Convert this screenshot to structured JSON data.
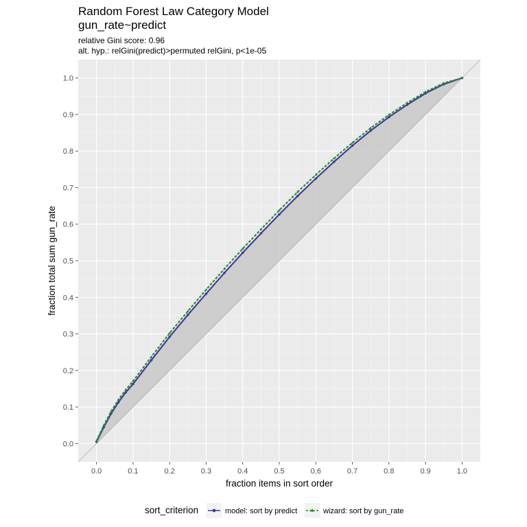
{
  "chart_data": {
    "type": "line",
    "title": "Random Forest Law Category Model",
    "title_line2": "gun_rate~predict",
    "subtitle_line1": "relative Gini score: 0.96",
    "subtitle_line2": "alt. hyp.: relGini(predict)>permuted relGini, p<1e-05",
    "xlabel": "fraction items in sort order",
    "ylabel": "fraction total sum gun_rate",
    "xlim": [
      -0.05,
      1.05
    ],
    "ylim": [
      -0.05,
      1.05
    ],
    "xticks": [
      0.0,
      0.1,
      0.2,
      0.3,
      0.4,
      0.5,
      0.6,
      0.7,
      0.8,
      0.9,
      1.0
    ],
    "yticks": [
      0.0,
      0.1,
      0.2,
      0.3,
      0.4,
      0.5,
      0.6,
      0.7,
      0.8,
      0.9,
      1.0
    ],
    "xtick_labels": [
      "0.0",
      "0.1",
      "0.2",
      "0.3",
      "0.4",
      "0.5",
      "0.6",
      "0.7",
      "0.8",
      "0.9",
      "1.0"
    ],
    "ytick_labels": [
      "0.0",
      "0.1",
      "0.2",
      "0.3",
      "0.4",
      "0.5",
      "0.6",
      "0.7",
      "0.8",
      "0.9",
      "1.0"
    ],
    "grid": true,
    "legend_position": "bottom",
    "legend_title": "sort_criterion",
    "diagonal_reference": true,
    "shaded_region": "between diagonal and model curve",
    "series": [
      {
        "name": "model: sort by predict",
        "color": "#3c3c9e",
        "marker": "circle",
        "linestyle": "solid",
        "x": [
          0.0,
          0.02,
          0.04,
          0.06,
          0.08,
          0.1,
          0.15,
          0.2,
          0.25,
          0.3,
          0.35,
          0.4,
          0.45,
          0.5,
          0.55,
          0.6,
          0.65,
          0.7,
          0.75,
          0.8,
          0.85,
          0.9,
          0.95,
          1.0
        ],
        "y": [
          0.005,
          0.045,
          0.082,
          0.113,
          0.14,
          0.163,
          0.228,
          0.292,
          0.352,
          0.41,
          0.467,
          0.522,
          0.575,
          0.627,
          0.677,
          0.725,
          0.771,
          0.815,
          0.856,
          0.893,
          0.927,
          0.958,
          0.983,
          1.0
        ]
      },
      {
        "name": "wizard: sort by gun_rate",
        "color": "#2e8b2e",
        "marker": "triangle",
        "linestyle": "dashed",
        "x": [
          0.0,
          0.02,
          0.04,
          0.06,
          0.08,
          0.1,
          0.15,
          0.2,
          0.25,
          0.3,
          0.35,
          0.4,
          0.45,
          0.5,
          0.55,
          0.6,
          0.65,
          0.7,
          0.75,
          0.8,
          0.85,
          0.9,
          0.95,
          1.0
        ],
        "y": [
          0.007,
          0.05,
          0.088,
          0.12,
          0.147,
          0.171,
          0.237,
          0.302,
          0.362,
          0.421,
          0.478,
          0.533,
          0.586,
          0.638,
          0.688,
          0.735,
          0.78,
          0.823,
          0.863,
          0.899,
          0.932,
          0.962,
          0.986,
          1.0
        ]
      }
    ]
  },
  "colors": {
    "panel_background": "#ebebeb",
    "grid_major": "#ffffff",
    "grid_minor": "#f5f5f5",
    "shade": "#c8c8c8",
    "diagonal": "#b0b0b0",
    "legend_key_background": "#f2f2f2"
  }
}
